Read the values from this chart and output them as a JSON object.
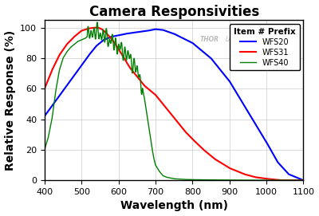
{
  "title": "Camera Responsivities",
  "xlabel": "Wavelength (nm)",
  "ylabel": "Relative Response (%)",
  "xlim": [
    400,
    1100
  ],
  "ylim": [
    0,
    105
  ],
  "xticks": [
    400,
    500,
    600,
    700,
    800,
    900,
    1000,
    1100
  ],
  "yticks": [
    0,
    20,
    40,
    60,
    80,
    100
  ],
  "legend_title": "Item # Prefix",
  "legend_entries": [
    "WFS20",
    "WFS31",
    "WFS40"
  ],
  "colors": {
    "WFS20": "#0000FF",
    "WFS31": "#FF0000",
    "WFS40": "#008000"
  },
  "background_color": "#FFFFFF",
  "plot_bg_color": "#FFFFFF",
  "grid_color": "#CCCCCC",
  "title_fontsize": 12,
  "axis_label_fontsize": 10,
  "tick_fontsize": 8,
  "wfs20_knots": [
    [
      400,
      42
    ],
    [
      430,
      52
    ],
    [
      460,
      62
    ],
    [
      490,
      72
    ],
    [
      520,
      82
    ],
    [
      540,
      88
    ],
    [
      560,
      92
    ],
    [
      580,
      94
    ],
    [
      600,
      95
    ],
    [
      620,
      96
    ],
    [
      650,
      97
    ],
    [
      680,
      98
    ],
    [
      700,
      99
    ],
    [
      720,
      98.5
    ],
    [
      750,
      96
    ],
    [
      800,
      90
    ],
    [
      850,
      80
    ],
    [
      900,
      65
    ],
    [
      950,
      45
    ],
    [
      1000,
      25
    ],
    [
      1030,
      12
    ],
    [
      1060,
      4
    ],
    [
      1090,
      1
    ],
    [
      1100,
      0
    ]
  ],
  "wfs31_knots": [
    [
      400,
      60
    ],
    [
      420,
      72
    ],
    [
      440,
      82
    ],
    [
      460,
      89
    ],
    [
      480,
      94
    ],
    [
      500,
      98
    ],
    [
      520,
      99.5
    ],
    [
      535,
      100
    ],
    [
      545,
      100
    ],
    [
      555,
      99
    ],
    [
      565,
      97
    ],
    [
      580,
      93
    ],
    [
      595,
      88
    ],
    [
      610,
      82
    ],
    [
      630,
      74
    ],
    [
      650,
      68
    ],
    [
      670,
      62
    ],
    [
      700,
      56
    ],
    [
      720,
      50
    ],
    [
      740,
      44
    ],
    [
      760,
      38
    ],
    [
      780,
      32
    ],
    [
      800,
      27
    ],
    [
      830,
      20
    ],
    [
      860,
      14
    ],
    [
      900,
      8
    ],
    [
      940,
      4
    ],
    [
      970,
      2
    ],
    [
      1000,
      1
    ],
    [
      1040,
      0
    ]
  ],
  "wfs40_base_knots": [
    [
      400,
      20
    ],
    [
      410,
      28
    ],
    [
      420,
      40
    ],
    [
      430,
      58
    ],
    [
      440,
      72
    ],
    [
      450,
      80
    ],
    [
      460,
      84
    ],
    [
      470,
      87
    ],
    [
      480,
      89
    ],
    [
      490,
      91
    ],
    [
      500,
      92
    ],
    [
      510,
      93
    ],
    [
      515,
      94
    ],
    [
      520,
      95
    ],
    [
      525,
      96
    ],
    [
      530,
      97
    ],
    [
      535,
      97.5
    ],
    [
      540,
      97
    ],
    [
      545,
      96.5
    ],
    [
      550,
      96
    ],
    [
      555,
      95
    ],
    [
      560,
      94.5
    ],
    [
      565,
      94
    ],
    [
      570,
      93
    ],
    [
      575,
      92
    ],
    [
      580,
      91.5
    ],
    [
      585,
      90
    ],
    [
      590,
      89.5
    ],
    [
      595,
      88
    ],
    [
      600,
      87.5
    ],
    [
      605,
      86
    ],
    [
      610,
      85
    ],
    [
      615,
      84
    ],
    [
      620,
      83
    ],
    [
      625,
      82
    ],
    [
      630,
      80
    ],
    [
      635,
      78
    ],
    [
      640,
      76
    ],
    [
      645,
      74
    ],
    [
      650,
      72
    ],
    [
      655,
      69
    ],
    [
      660,
      65
    ],
    [
      665,
      60
    ],
    [
      670,
      54
    ],
    [
      675,
      46
    ],
    [
      680,
      38
    ],
    [
      685,
      30
    ],
    [
      690,
      22
    ],
    [
      695,
      15
    ],
    [
      700,
      10
    ],
    [
      710,
      6
    ],
    [
      720,
      3
    ],
    [
      730,
      2
    ],
    [
      750,
      1
    ],
    [
      780,
      0.5
    ],
    [
      820,
      0.3
    ],
    [
      900,
      0.1
    ],
    [
      1000,
      0
    ],
    [
      1100,
      0
    ]
  ]
}
